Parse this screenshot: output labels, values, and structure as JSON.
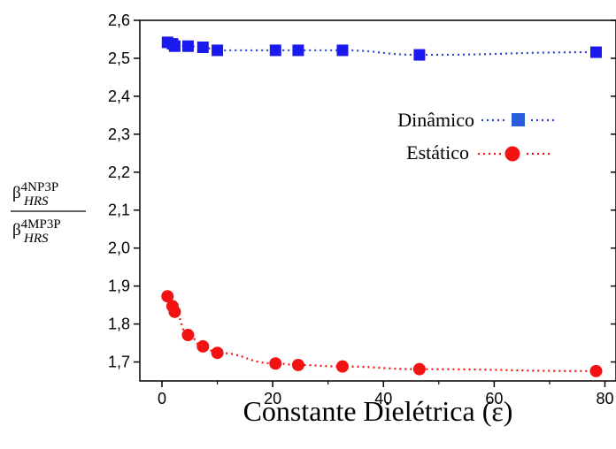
{
  "chart_data": {
    "type": "scatter",
    "xlabel": "Constante Dielétrica (ε)",
    "ylabel": {
      "numerator_base": "β",
      "numerator_sup": "4NP3P",
      "numerator_sub": "HRS",
      "denominator_base": "β",
      "denominator_sup": "4MP3P",
      "denominator_sub": "HRS"
    },
    "xlim": [
      -4,
      82
    ],
    "ylim": [
      1.65,
      2.6
    ],
    "x_ticks": [
      0,
      20,
      40,
      60,
      80
    ],
    "x_tick_labels": [
      "0",
      "20",
      "40",
      "60",
      "80"
    ],
    "y_ticks": [
      1.7,
      1.8,
      1.9,
      2.0,
      2.1,
      2.2,
      2.3,
      2.4,
      2.5,
      2.6
    ],
    "y_tick_labels": [
      "1,7",
      "1,8",
      "1,9",
      "2,0",
      "2,1",
      "2,2",
      "2,3",
      "2,4",
      "2,5",
      "2,6"
    ],
    "grid": false,
    "legend_position": "center-right",
    "series": [
      {
        "name": "Dinâmico",
        "marker": "square",
        "color": "#1a1aee",
        "line_color": "#2a44d8",
        "line_style": "dotted",
        "x": [
          1.0,
          1.9,
          2.3,
          4.7,
          7.4,
          10.0,
          20.5,
          24.6,
          32.6,
          46.5,
          78.4
        ],
        "y": [
          2.542,
          2.538,
          2.532,
          2.532,
          2.529,
          2.521,
          2.521,
          2.521,
          2.521,
          2.509,
          2.516
        ]
      },
      {
        "name": "Estático",
        "marker": "circle",
        "color": "#f21212",
        "line_color": "#f21212",
        "line_style": "dotted",
        "x": [
          1.0,
          1.9,
          2.3,
          4.7,
          7.4,
          10.0,
          20.5,
          24.6,
          32.6,
          46.5,
          78.4
        ],
        "y": [
          1.873,
          1.847,
          1.832,
          1.771,
          1.741,
          1.724,
          1.696,
          1.692,
          1.688,
          1.681,
          1.676
        ]
      }
    ]
  }
}
